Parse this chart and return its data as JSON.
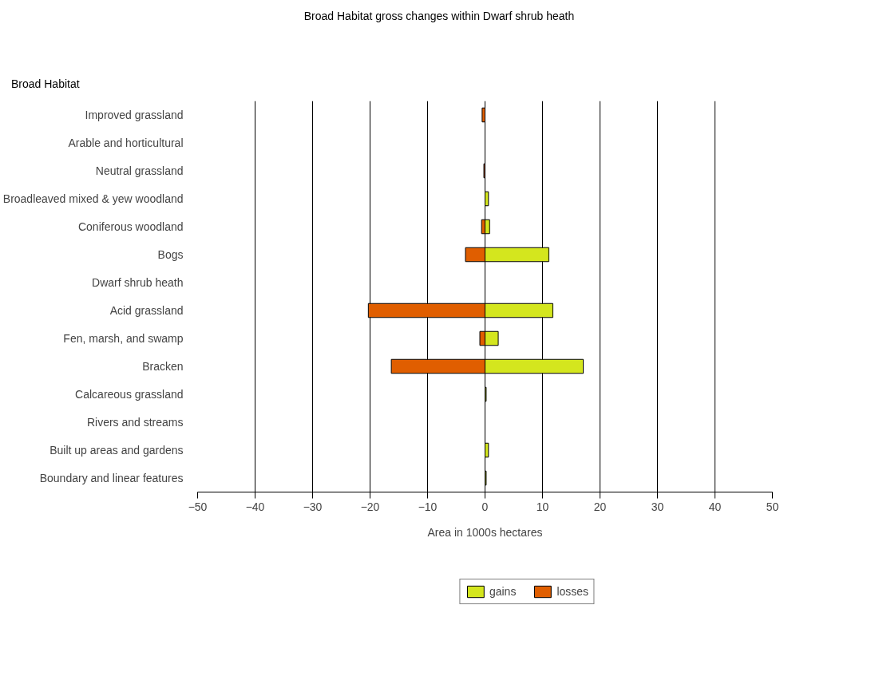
{
  "chart_data": {
    "type": "bar",
    "orientation": "horizontal",
    "stacked": true,
    "title": "Broad Habitat gross changes within Dwarf shrub heath",
    "ylabel": "Broad Habitat",
    "xlabel": "Area in 1000s hectares",
    "categories": [
      "Improved grassland",
      "Arable and horticultural",
      "Neutral grassland",
      "Broadleaved mixed & yew woodland",
      "Coniferous woodland",
      "Bogs",
      "Dwarf shrub heath",
      "Acid grassland",
      "Fen, marsh, and swamp",
      "Bracken",
      "Calcareous grassland",
      "Rivers and streams",
      "Built up areas and gardens",
      "Boundary and linear features"
    ],
    "series": [
      {
        "name": "gains",
        "color": "#d4e61e",
        "values": [
          null,
          null,
          null,
          0.6,
          0.8,
          11.1,
          null,
          11.8,
          2.3,
          17.1,
          0.2,
          null,
          0.6,
          0.2
        ]
      },
      {
        "name": "losses",
        "color": "#e05e00",
        "values": [
          -0.5,
          null,
          -0.2,
          null,
          -0.6,
          -3.4,
          null,
          -20.3,
          -0.9,
          -16.3,
          null,
          null,
          null,
          null
        ]
      }
    ],
    "xlim": [
      -50,
      50
    ],
    "xticks": [
      -50,
      -40,
      -30,
      -20,
      -10,
      0,
      10,
      20,
      30,
      40,
      50
    ],
    "grid": "x",
    "legend": "bottom"
  }
}
